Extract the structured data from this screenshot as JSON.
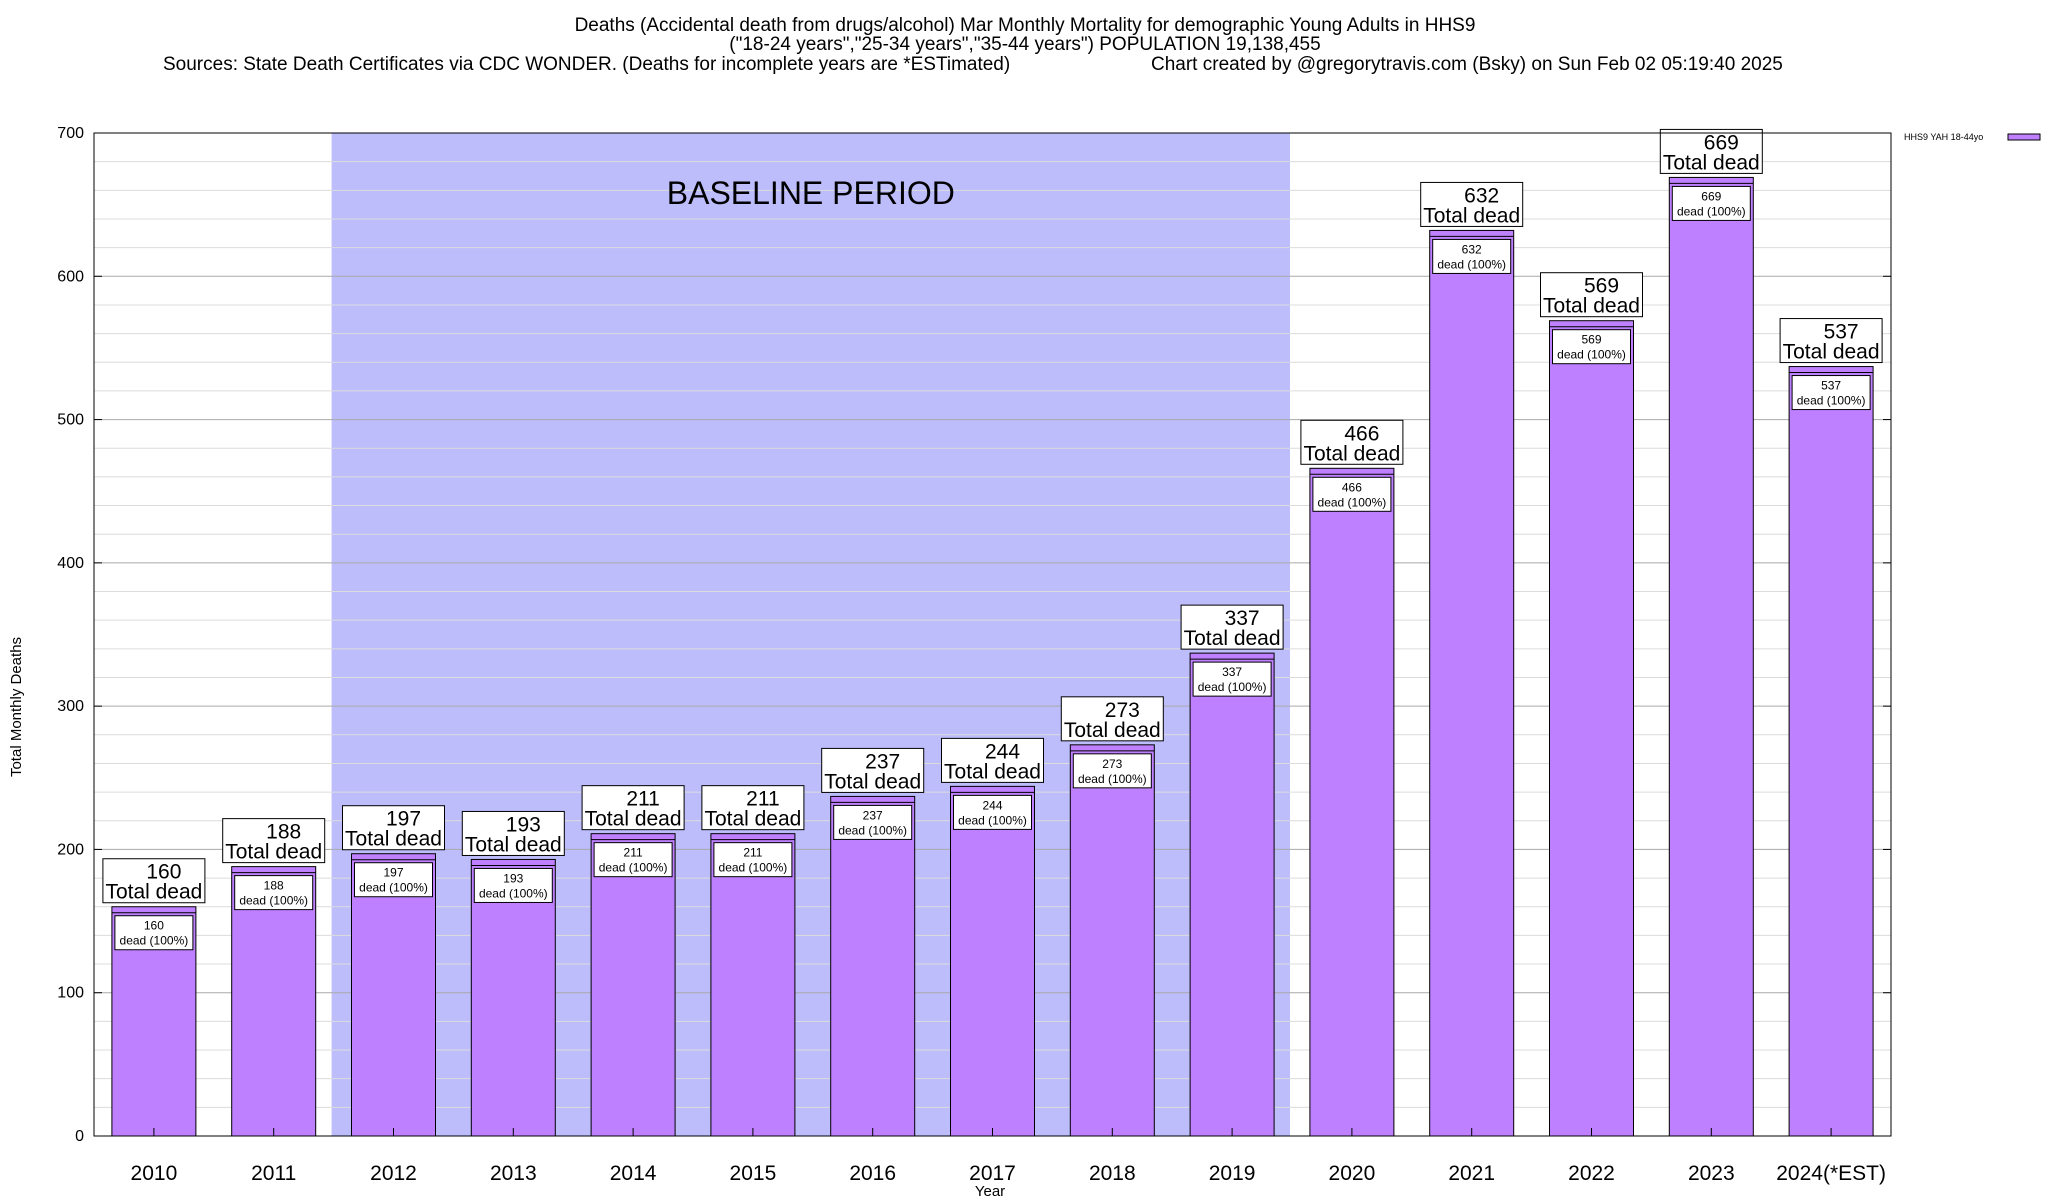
{
  "chart_data": {
    "type": "bar",
    "title_lines": [
      "Deaths (Accidental death from drugs/alcohol) Mar Monthly Mortality for demographic Young Adults in HHS9",
      "(\"18-24 years\",\"25-34 years\",\"35-44 years\") POPULATION 19,138,455"
    ],
    "source_text": "Sources: State Death Certificates via CDC WONDER. (Deaths for incomplete years are *ESTimated)",
    "credit_text": "Chart created by @gregorytravis.com (Bsky) on Sun Feb 02 05:19:40 2025",
    "xlabel": "Year",
    "ylabel": "Total Monthly Deaths",
    "ylim": [
      0,
      700
    ],
    "yticks": [
      0,
      100,
      200,
      300,
      400,
      500,
      600,
      700
    ],
    "categories": [
      "2010",
      "2011",
      "2012",
      "2013",
      "2014",
      "2015",
      "2016",
      "2017",
      "2018",
      "2019",
      "2020",
      "2021",
      "2022",
      "2023",
      "2024(*EST)"
    ],
    "series": [
      {
        "name": "HHS9 YAH 18-44yo",
        "values": [
          160,
          188,
          197,
          193,
          211,
          211,
          237,
          244,
          273,
          337,
          466,
          632,
          569,
          669,
          537
        ]
      }
    ],
    "total_label_line2": "Total dead",
    "bar_label_line2": "dead (100%)",
    "baseline_period": {
      "label": "BASELINE PERIOD",
      "start_category": "2012",
      "end_category": "2019"
    },
    "legend_position": "top-right",
    "grid": true,
    "colors": {
      "bar_fill": "#bf80ff",
      "baseline_fill": "#bdbdfc",
      "grid_line": "#c0c0c0"
    }
  }
}
